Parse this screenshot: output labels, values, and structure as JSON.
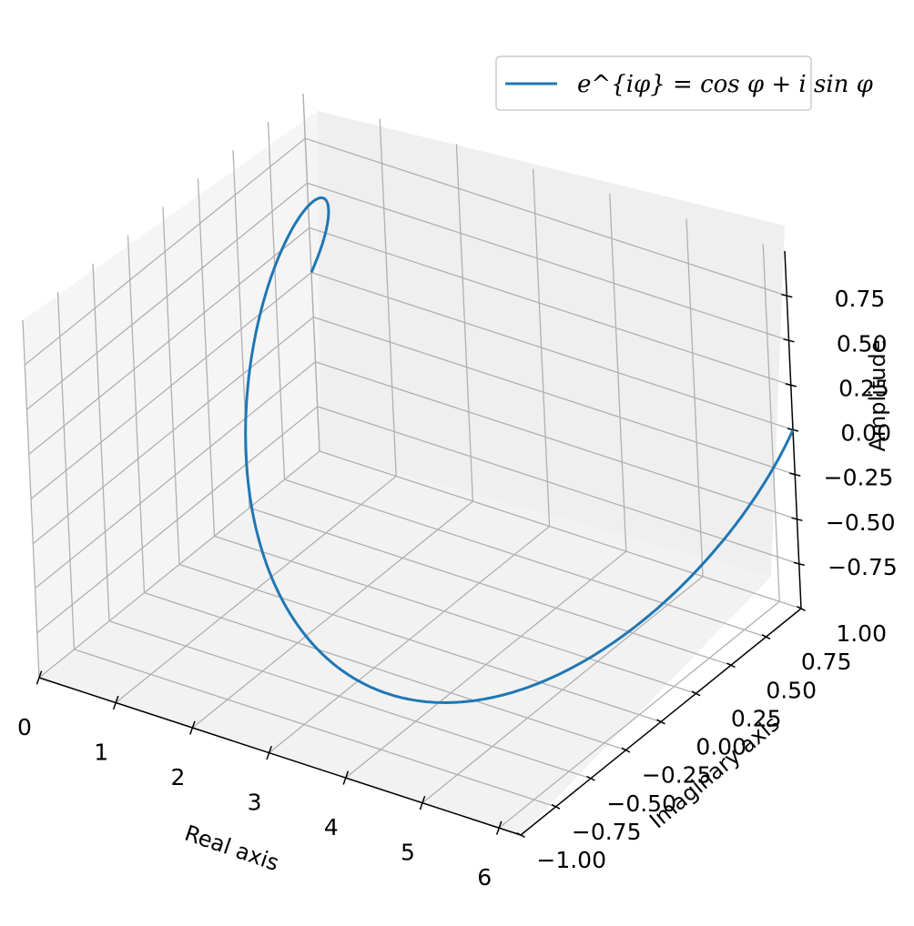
{
  "chart_data": {
    "type": "line",
    "projection": "3d",
    "grid": true,
    "legend_placement": "top-right",
    "xlabel": "Real axis",
    "ylabel": "Imaginary axis",
    "zlabel": "Amplitude",
    "xlim": [
      0,
      6.283
    ],
    "ylim": [
      -1,
      1
    ],
    "zlim": [
      -1,
      1
    ],
    "x_ticks": [
      "0",
      "1",
      "2",
      "3",
      "4",
      "5",
      "6"
    ],
    "y_ticks": [
      "−1.00",
      "−0.75",
      "−0.50",
      "−0.25",
      "0.00",
      "0.25",
      "0.50",
      "0.75",
      "1.00"
    ],
    "z_ticks": [
      "−0.75",
      "−0.50",
      "−0.25",
      "0.00",
      "0.25",
      "0.50",
      "0.75"
    ],
    "series": [
      {
        "name": "e^{iφ} = cos φ + i sin φ",
        "color": "#1f77b4",
        "x_range": [
          0,
          6.283
        ],
        "y": "cos(x)",
        "z": "sin(x)"
      }
    ]
  }
}
